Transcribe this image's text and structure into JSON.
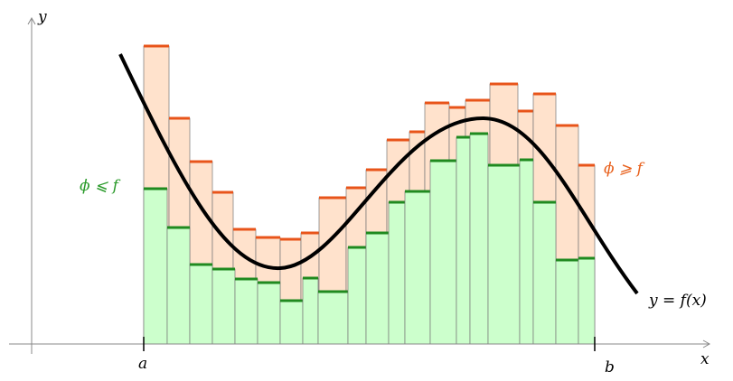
{
  "labels": {
    "y_axis": "y",
    "x_axis": "x",
    "a": "a",
    "b": "b",
    "lower": "ϕ ⩽ f",
    "upper": "ϕ ⩾ f",
    "curve": "y = f(x)"
  }
}
